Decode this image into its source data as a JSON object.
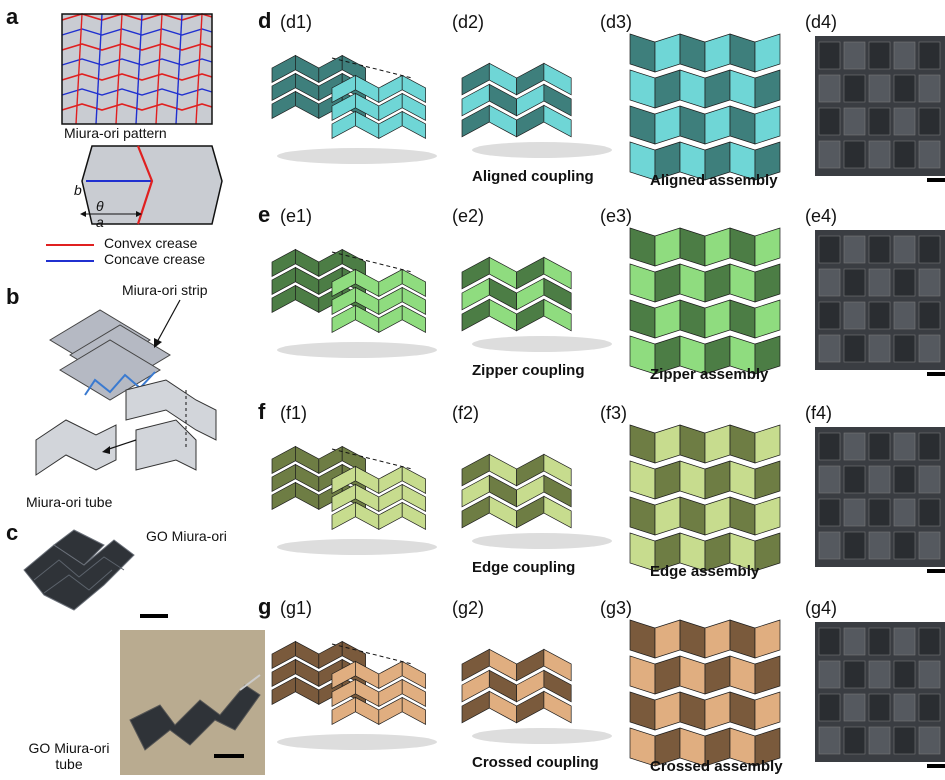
{
  "panels": {
    "a": {
      "label": "a",
      "pattern_caption": "Miura-ori pattern",
      "dim_b": "b",
      "dim_a": "a",
      "dim_theta": "θ",
      "legend": [
        {
          "text": "Convex crease",
          "color": "#e02020"
        },
        {
          "text": "Concave crease",
          "color": "#2030d0"
        }
      ]
    },
    "b": {
      "label": "b",
      "strip_label": "Miura-ori strip",
      "tube_label": "Miura-ori tube"
    },
    "c": {
      "label": "c",
      "sheet_label": "GO Miura-ori",
      "tube_label": "GO Miura-ori tube"
    },
    "d": {
      "label": "d",
      "subs": [
        "(d1)",
        "(d2)",
        "(d3)",
        "(d4)"
      ],
      "coupling": "Aligned coupling",
      "assembly": "Aligned assembly",
      "color_dark": "#3e7f7c",
      "color_light": "#6fd6d6"
    },
    "e": {
      "label": "e",
      "subs": [
        "(e1)",
        "(e2)",
        "(e3)",
        "(e4)"
      ],
      "coupling": "Zipper coupling",
      "assembly": "Zipper assembly",
      "color_dark": "#4c7d45",
      "color_light": "#8fdc7f"
    },
    "f": {
      "label": "f",
      "subs": [
        "(f1)",
        "(f2)",
        "(f3)",
        "(f4)"
      ],
      "coupling": "Edge coupling",
      "assembly": "Edge assembly",
      "color_dark": "#6e7d44",
      "color_light": "#c7dc8e"
    },
    "g": {
      "label": "g",
      "subs": [
        "(g1)",
        "(g2)",
        "(g3)",
        "(g4)"
      ],
      "coupling": "Crossed coupling",
      "assembly": "Crossed assembly",
      "color_dark": "#7a5a3c",
      "color_light": "#e0ae80"
    }
  }
}
